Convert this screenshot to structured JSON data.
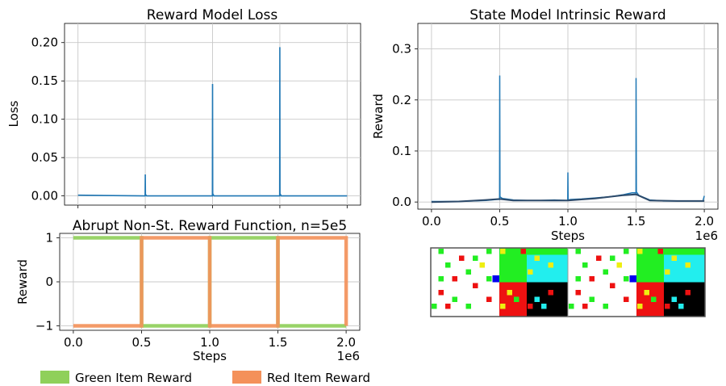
{
  "chart_data": [
    {
      "type": "line",
      "title": "Reward Model Loss",
      "xlabel": "",
      "ylabel": "Loss",
      "xlim": [
        -100000,
        2100000
      ],
      "ylim": [
        -0.012,
        0.225
      ],
      "xticks": [
        0,
        500000,
        1000000,
        1500000,
        2000000
      ],
      "yticks": [
        0.0,
        0.05,
        0.1,
        0.15,
        0.2
      ],
      "ytick_labels": [
        "0.00",
        "0.05",
        "0.10",
        "0.15",
        "0.20"
      ],
      "grid": true,
      "series": [
        {
          "color": "#1f77b4",
          "x": [
            0,
            490000,
            499000,
            500000,
            501000,
            510000,
            990000,
            999000,
            1000000,
            1001000,
            1010000,
            1490000,
            1499000,
            1500000,
            1501000,
            1510000,
            2000000
          ],
          "y": [
            0.001,
            0.0,
            0.0,
            0.028,
            0.002,
            0.0,
            0.0,
            0.0,
            0.146,
            0.003,
            0.0,
            0.0,
            0.0,
            0.194,
            0.003,
            0.0,
            0.0
          ]
        }
      ]
    },
    {
      "type": "line",
      "title": "State Model Intrinsic Reward",
      "xlabel": "Steps",
      "ylabel": "Reward",
      "x_offset_label": "1e6",
      "xlim": [
        -100000,
        2100000
      ],
      "ylim": [
        -0.014,
        0.35
      ],
      "xticks": [
        0,
        500000,
        1000000,
        1500000,
        2000000
      ],
      "xtick_labels": [
        "0.0",
        "0.5",
        "1.0",
        "1.5",
        "2.0"
      ],
      "yticks": [
        0.0,
        0.1,
        0.2,
        0.3
      ],
      "ytick_labels": [
        "0.0",
        "0.1",
        "0.2",
        "0.3"
      ],
      "grid": true,
      "series": [
        {
          "color": "#1f77b4",
          "x": [
            0,
            100000,
            200000,
            300000,
            400000,
            480000,
            499000,
            500000,
            502000,
            520000,
            600000,
            700000,
            800000,
            900000,
            990000,
            999000,
            1000000,
            1002000,
            1020000,
            1100000,
            1200000,
            1300000,
            1400000,
            1470000,
            1499000,
            1500000,
            1502000,
            1520000,
            1600000,
            1700000,
            1800000,
            1900000,
            1990000,
            2000000
          ],
          "y": [
            0.001,
            0.001,
            0.001,
            0.002,
            0.003,
            0.005,
            0.005,
            0.248,
            0.01,
            0.007,
            0.004,
            0.003,
            0.003,
            0.004,
            0.003,
            0.003,
            0.058,
            0.004,
            0.005,
            0.006,
            0.008,
            0.01,
            0.014,
            0.018,
            0.018,
            0.243,
            0.02,
            0.013,
            0.004,
            0.002,
            0.002,
            0.002,
            0.002,
            0.012
          ]
        },
        {
          "color": "#2d4a6a",
          "x": [
            0,
            200000,
            400000,
            500000,
            600000,
            800000,
            1000000,
            1200000,
            1400000,
            1500000,
            1600000,
            1800000,
            2000000
          ],
          "y": [
            0.0,
            0.001,
            0.004,
            0.006,
            0.003,
            0.003,
            0.003,
            0.007,
            0.013,
            0.015,
            0.003,
            0.002,
            0.002
          ]
        }
      ]
    },
    {
      "type": "line",
      "title": "Abrupt Non-St. Reward Function, n=5e5",
      "xlabel": "Steps",
      "ylabel": "Reward",
      "x_offset_label": "1e6",
      "xlim": [
        -100000,
        2100000
      ],
      "ylim": [
        -1.1,
        1.1
      ],
      "xticks": [
        0,
        500000,
        1000000,
        1500000,
        2000000
      ],
      "xtick_labels": [
        "0.0",
        "0.5",
        "1.0",
        "1.5",
        "2.0"
      ],
      "yticks": [
        -1,
        0,
        1
      ],
      "ytick_labels": [
        "−1",
        "0",
        "1"
      ],
      "grid": true,
      "legend": "bottom",
      "series": [
        {
          "name": "Green Item Reward",
          "color": "#8fd05a",
          "x": [
            0,
            500000,
            500000,
            1000000,
            1000000,
            1500000,
            1500000,
            2000000
          ],
          "y": [
            1,
            1,
            -1,
            -1,
            1,
            1,
            -1,
            -1
          ]
        },
        {
          "name": "Red Item Reward",
          "color": "#f4915a",
          "x": [
            0,
            500000,
            500000,
            1000000,
            1000000,
            1500000,
            1500000,
            2000000,
            2000000
          ],
          "y": [
            -1,
            -1,
            1,
            1,
            -1,
            -1,
            1,
            1,
            -1
          ]
        }
      ]
    }
  ],
  "image_grid": {
    "colors": {
      "white": "#ffffff",
      "green": "#22ee22",
      "cyan": "#22eeee",
      "red": "#ee1111",
      "black": "#000000",
      "blue": "#0000ee",
      "yellow": "#eeee11"
    }
  }
}
